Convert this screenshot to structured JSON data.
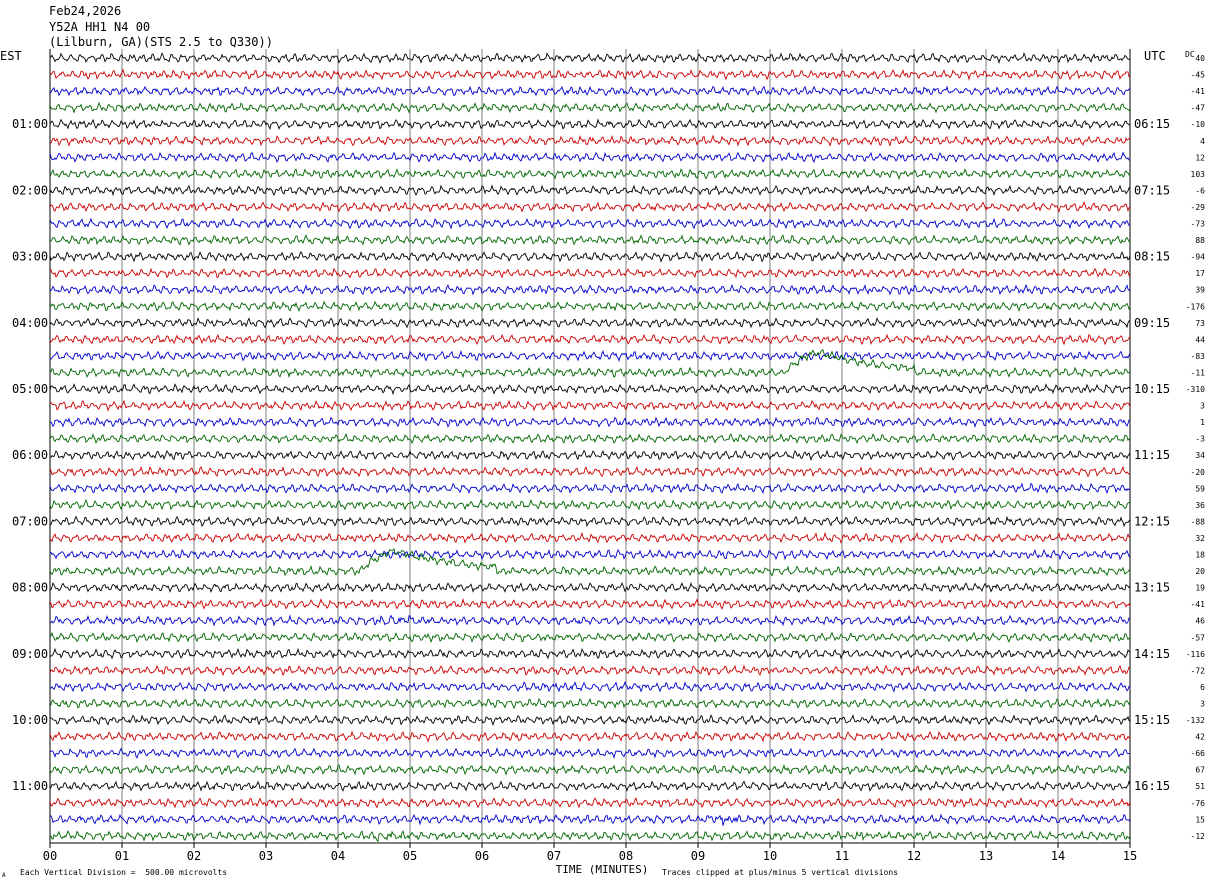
{
  "header": {
    "date": "Feb24,2026",
    "station": "Y52A HH1 N4 00",
    "location": "(Lilburn, GA)(STS 2.5 to Q330))"
  },
  "axes": {
    "left_timezone": "EST",
    "right_timezone": "UTC",
    "dc_label": "DC",
    "xlabel": "TIME (MINUTES)"
  },
  "footer": {
    "scale_note": "Each Vertical Division =  500.00 microvolts",
    "clip_note": "Traces clipped at plus/minus 5 vertical divisions",
    "corner_mark": "A"
  },
  "colors": {
    "trace_cycle": [
      "#000000",
      "#cc0000",
      "#0000cc",
      "#006600"
    ],
    "grid": "#000000"
  },
  "chart_data": {
    "type": "line",
    "description_kind": "helicorder",
    "x_ticks": [
      "00",
      "01",
      "02",
      "03",
      "04",
      "05",
      "06",
      "07",
      "08",
      "09",
      "10",
      "11",
      "12",
      "13",
      "14",
      "15"
    ],
    "xlim": [
      0,
      15
    ],
    "left_time_labels": [
      {
        "row": 4,
        "text": "01:00"
      },
      {
        "row": 8,
        "text": "02:00"
      },
      {
        "row": 12,
        "text": "03:00"
      },
      {
        "row": 16,
        "text": "04:00"
      },
      {
        "row": 20,
        "text": "05:00"
      },
      {
        "row": 24,
        "text": "06:00"
      },
      {
        "row": 28,
        "text": "07:00"
      },
      {
        "row": 32,
        "text": "08:00"
      },
      {
        "row": 36,
        "text": "09:00"
      },
      {
        "row": 40,
        "text": "10:00"
      },
      {
        "row": 44,
        "text": "11:00"
      }
    ],
    "right_time_labels": [
      {
        "row": 4,
        "text": "06:15"
      },
      {
        "row": 8,
        "text": "07:15"
      },
      {
        "row": 12,
        "text": "08:15"
      },
      {
        "row": 16,
        "text": "09:15"
      },
      {
        "row": 20,
        "text": "10:15"
      },
      {
        "row": 24,
        "text": "11:15"
      },
      {
        "row": 28,
        "text": "12:15"
      },
      {
        "row": 32,
        "text": "13:15"
      },
      {
        "row": 36,
        "text": "14:15"
      },
      {
        "row": 40,
        "text": "15:15"
      },
      {
        "row": 44,
        "text": "16:15"
      }
    ],
    "dc_offsets": [
      "40",
      "-45",
      "-41",
      "-47",
      "-10",
      "4",
      "12",
      "103",
      "-6",
      "-29",
      "-73",
      "88",
      "-94",
      "17",
      "39",
      "-176",
      "73",
      "44",
      "-83",
      "-11",
      "-310",
      "3",
      "1",
      "-3",
      "34",
      "-20",
      "59",
      "36",
      "-88",
      "32",
      "18",
      "20",
      "19",
      "-41",
      "46",
      "-57",
      "-116",
      "-72",
      "6",
      "3",
      "-132",
      "42",
      "-66",
      "67",
      "51",
      "-76",
      "15",
      "-12"
    ],
    "events": [
      {
        "row": 19,
        "start_min": 10.2,
        "end_min": 12.0,
        "kind": "long-period bump"
      },
      {
        "row": 31,
        "start_min": 4.3,
        "end_min": 6.2,
        "kind": "long-period bump"
      },
      {
        "row": 34,
        "start_min": 4.4,
        "end_min": 5.4,
        "kind": "burst"
      },
      {
        "row": 46,
        "start_min": 9.05,
        "end_min": 9.65,
        "kind": "burst"
      },
      {
        "row": 47,
        "start_min": 4.3,
        "end_min": 5.0,
        "kind": "burst"
      },
      {
        "row": 47,
        "start_min": 11.15,
        "end_min": 11.35,
        "kind": "burst"
      }
    ]
  }
}
